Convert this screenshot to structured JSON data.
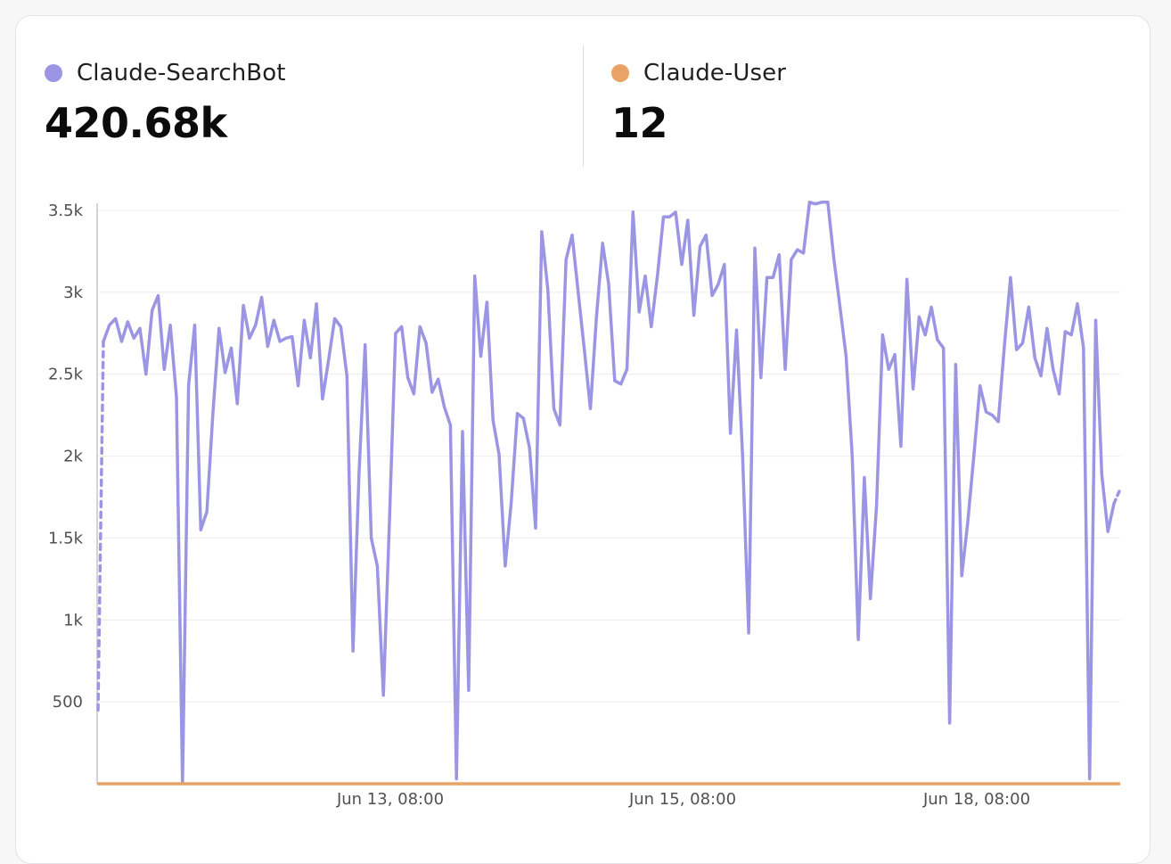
{
  "colors": {
    "searchbot": "#9c95e3",
    "user": "#e9a465",
    "grid": "#ececef",
    "axis": "#b8b8be"
  },
  "metrics": [
    {
      "label": "Claude-SearchBot",
      "value": "420.68k",
      "color": "#9c95e3"
    },
    {
      "label": "Claude-User",
      "value": "12",
      "color": "#e9a465"
    }
  ],
  "chart_data": {
    "type": "line",
    "ylim": [
      0,
      3550
    ],
    "yticks": [
      {
        "value": 500,
        "label": "500"
      },
      {
        "value": 1000,
        "label": "1k"
      },
      {
        "value": 1500,
        "label": "1.5k"
      },
      {
        "value": 2000,
        "label": "2k"
      },
      {
        "value": 2500,
        "label": "2.5k"
      },
      {
        "value": 3000,
        "label": "3k"
      },
      {
        "value": 3500,
        "label": "3.5k"
      }
    ],
    "xticks": [
      "Jun 13, 08:00",
      "Jun 15, 08:00",
      "Jun 18, 08:00"
    ],
    "grid": true,
    "legend": "top",
    "series": [
      {
        "name": "Claude-SearchBot",
        "color": "#9c95e3",
        "dashed_start": [
          450,
          2700
        ],
        "dashed_end": [
          1710,
          1800
        ],
        "values": [
          2700,
          2800,
          2840,
          2700,
          2820,
          2720,
          2780,
          2500,
          2890,
          2980,
          2530,
          2800,
          2360,
          0,
          2430,
          2800,
          1550,
          1660,
          2270,
          2780,
          2510,
          2660,
          2320,
          2920,
          2720,
          2800,
          2970,
          2670,
          2830,
          2700,
          2720,
          2730,
          2430,
          2830,
          2600,
          2930,
          2350,
          2590,
          2840,
          2790,
          2490,
          810,
          1900,
          2680,
          1500,
          1330,
          540,
          1620,
          2750,
          2790,
          2480,
          2380,
          2790,
          2690,
          2390,
          2470,
          2300,
          2190,
          30,
          2150,
          570,
          3100,
          2610,
          2940,
          2220,
          2010,
          1330,
          1720,
          2260,
          2230,
          2050,
          1560,
          3370,
          3020,
          2290,
          2190,
          3200,
          3350,
          3000,
          2650,
          2290,
          2850,
          3300,
          3050,
          2460,
          2440,
          2530,
          3490,
          2880,
          3100,
          2790,
          3100,
          3460,
          3460,
          3490,
          3170,
          3440,
          2860,
          3280,
          3350,
          2980,
          3050,
          3170,
          2140,
          2770,
          2000,
          920,
          3270,
          2480,
          3090,
          3090,
          3230,
          2530,
          3200,
          3260,
          3240,
          3550,
          3540,
          3550,
          3550,
          3200,
          2910,
          2610,
          2000,
          880,
          1870,
          1130,
          1700,
          2740,
          2530,
          2620,
          2060,
          3080,
          2410,
          2850,
          2740,
          2910,
          2710,
          2660,
          370,
          2560,
          1270,
          1600,
          2010,
          2430,
          2270,
          2250,
          2210,
          2670,
          3090,
          2650,
          2690,
          2910,
          2600,
          2490,
          2780,
          2530,
          2380,
          2760,
          2740,
          2930,
          2660,
          30,
          2830,
          1890,
          1540,
          1710
        ]
      },
      {
        "name": "Claude-User",
        "color": "#e9a465",
        "constant": 0
      }
    ]
  }
}
